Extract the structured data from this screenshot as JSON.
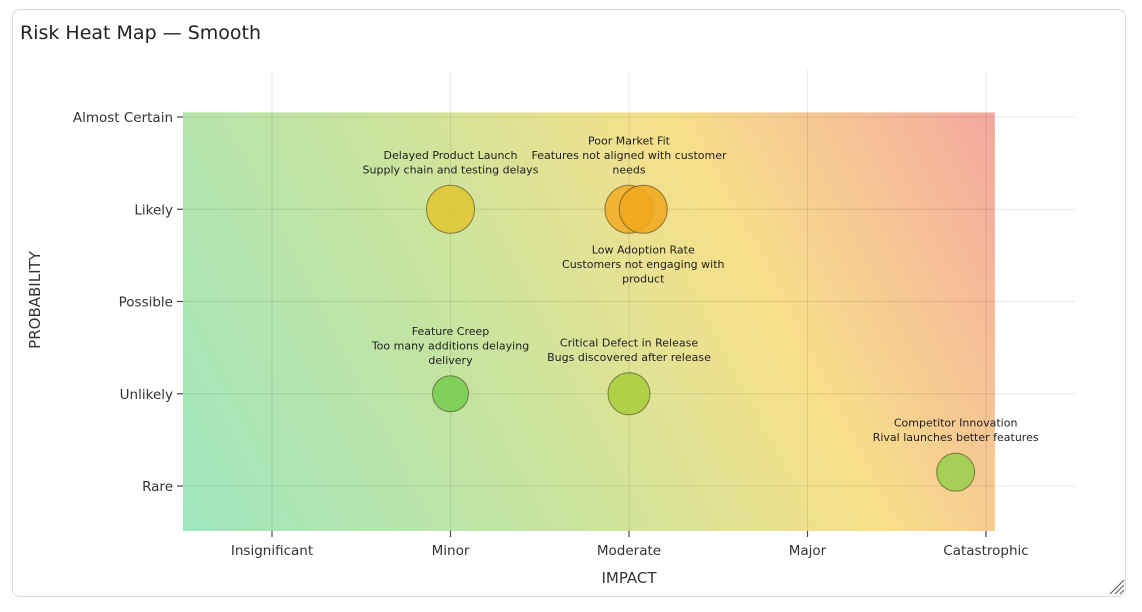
{
  "panel": {
    "title": "Risk Heat Map — Smooth"
  },
  "chart_data": {
    "type": "scatter",
    "subtype": "bubble risk matrix over smooth heat gradient",
    "title": "Risk Heat Map — Smooth",
    "xlabel": "IMPACT",
    "ylabel": "PROBABILITY",
    "x_categories": [
      "Insignificant",
      "Minor",
      "Moderate",
      "Major",
      "Catastrophic"
    ],
    "y_categories": [
      "Rare",
      "Unlikely",
      "Possible",
      "Likely",
      "Almost Certain"
    ],
    "xlim": [
      0.5,
      5.5
    ],
    "ylim": [
      0.5,
      5.5
    ],
    "heatmap_extent": {
      "x": [
        0.5,
        5.05
      ],
      "y": [
        0.5,
        5.05
      ]
    },
    "grid": true,
    "gradient_colors": {
      "low": "#9fe6bf",
      "mid": "#f8e08a",
      "high": "#f4a8a0"
    },
    "points": [
      {
        "name": "Delayed Product Launch",
        "description": "Supply chain and testing delays",
        "x": 2,
        "y": 4,
        "color": "#e0c632",
        "label_pos": "above"
      },
      {
        "name": "Poor Market Fit",
        "description": "Features not aligned with customer needs",
        "x": 3,
        "y": 4,
        "color": "#f0ad24",
        "label_pos": "above"
      },
      {
        "name": "Low Adoption Rate",
        "description": "Customers not engaging with product",
        "x": 3.08,
        "y": 4,
        "color": "#f0a81e",
        "label_pos": "below"
      },
      {
        "name": "Feature Creep",
        "description": "Too many additions delaying delivery",
        "x": 2,
        "y": 2,
        "color": "#79cd52",
        "label_pos": "above"
      },
      {
        "name": "Critical Defect in Release",
        "description": "Bugs discovered after release",
        "x": 3,
        "y": 2,
        "color": "#aacd3e",
        "label_pos": "above"
      },
      {
        "name": "Competitor Innovation",
        "description": "Rival launches better features",
        "x": 4.83,
        "y": 1.15,
        "color": "#9bcf4e",
        "label_pos": "above"
      }
    ]
  }
}
